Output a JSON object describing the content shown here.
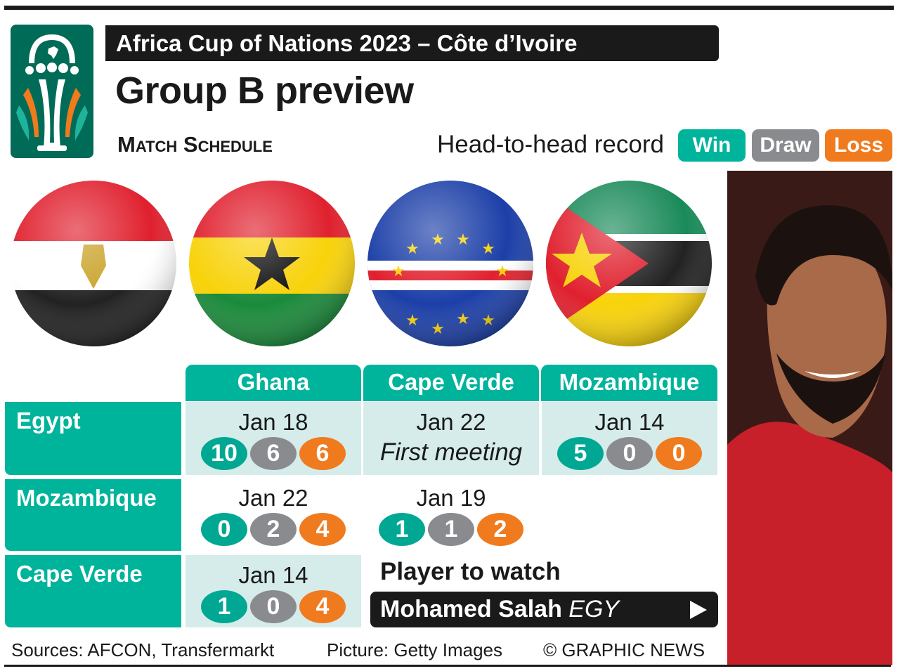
{
  "header": {
    "title_bar": "Africa Cup of Nations 2023 – Côte d’Ivoire",
    "title": "Group B preview",
    "subtitle": "Match Schedule",
    "h2h_label": "Head-to-head record",
    "legend": [
      {
        "label": "Win",
        "color": "#00b39b"
      },
      {
        "label": "Draw",
        "color": "#8a8b8e"
      },
      {
        "label": "Loss",
        "color": "#f07a1e"
      }
    ]
  },
  "flags": [
    "Egypt",
    "Ghana",
    "Cape Verde",
    "Mozambique"
  ],
  "columns": [
    "Ghana",
    "Cape Verde",
    "Mozambique"
  ],
  "rows": [
    {
      "team": "Egypt",
      "cells": [
        {
          "date": "Jan 18",
          "win": "10",
          "draw": "6",
          "loss": "6"
        },
        {
          "date": "Jan 22",
          "note": "First meeting"
        },
        {
          "date": "Jan 14",
          "win": "5",
          "draw": "0",
          "loss": "0"
        }
      ]
    },
    {
      "team": "Mozambique",
      "cells": [
        {
          "date": "Jan 22",
          "win": "0",
          "draw": "2",
          "loss": "4"
        },
        {
          "date": "Jan 19",
          "win": "1",
          "draw": "1",
          "loss": "2"
        }
      ]
    },
    {
      "team": "Cape Verde",
      "cells": [
        {
          "date": "Jan 14",
          "win": "1",
          "draw": "0",
          "loss": "4"
        }
      ]
    }
  ],
  "player": {
    "heading": "Player to watch",
    "name": "Mohamed Salah",
    "country": "EGY"
  },
  "footer": {
    "sources": "Sources: AFCON, Transfermarkt",
    "picture": "Picture: Getty Images",
    "credit": "© GRAPHIC NEWS"
  }
}
